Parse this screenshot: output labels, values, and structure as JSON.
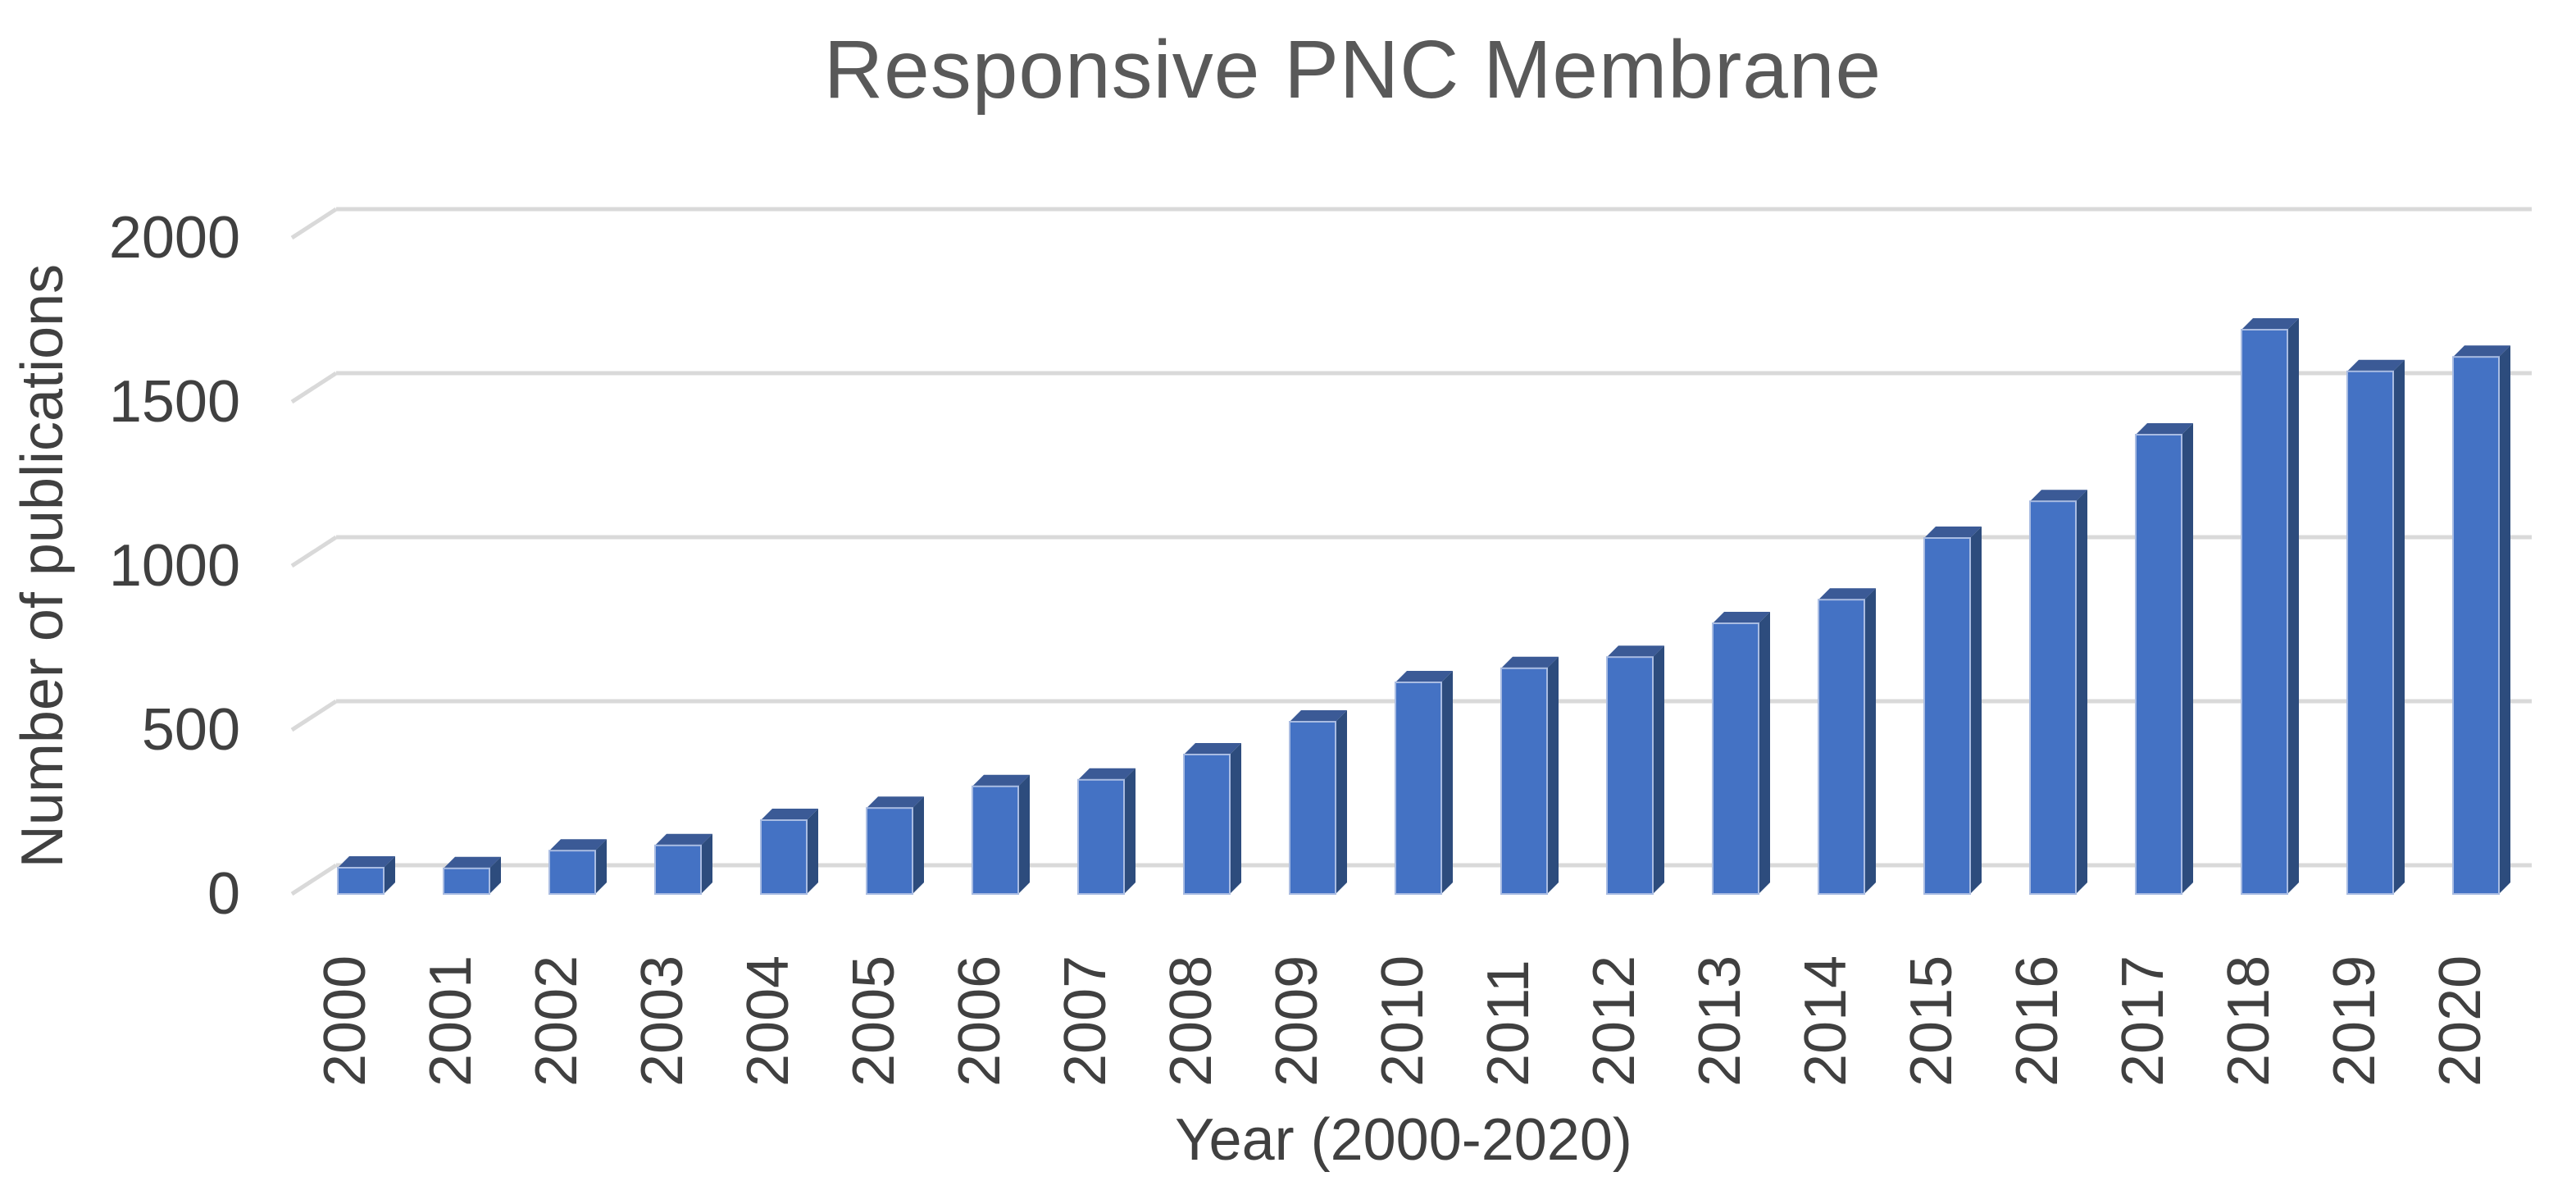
{
  "chart_data": {
    "type": "bar",
    "style": "3d-column",
    "title": "Responsive PNC Membrane",
    "xlabel": "Year (2000-2020)",
    "ylabel": "Number of publications",
    "categories": [
      "2000",
      "2001",
      "2002",
      "2003",
      "2004",
      "2005",
      "2006",
      "2007",
      "2008",
      "2009",
      "2010",
      "2011",
      "2012",
      "2013",
      "2014",
      "2015",
      "2016",
      "2017",
      "2018",
      "2019",
      "2020"
    ],
    "values": [
      80,
      78,
      132,
      148,
      225,
      262,
      328,
      348,
      425,
      525,
      645,
      688,
      722,
      825,
      897,
      1085,
      1197,
      1400,
      1720,
      1593,
      1637
    ],
    "ylim": [
      0,
      2000
    ],
    "yticks": [
      0,
      500,
      1000,
      1500,
      2000
    ],
    "ytick_labels": [
      "0",
      "500",
      "1000",
      "1500",
      "2000"
    ],
    "grid": true,
    "legend": false,
    "colors": {
      "bar_front": "#4472C4",
      "bar_top": "#3B5A96",
      "bar_side": "#2D4C7D",
      "bar_edge_highlight": "#A9BCE2",
      "gridline": "#D9D9D9",
      "title_text": "#595959",
      "axis_text": "#404040"
    }
  }
}
